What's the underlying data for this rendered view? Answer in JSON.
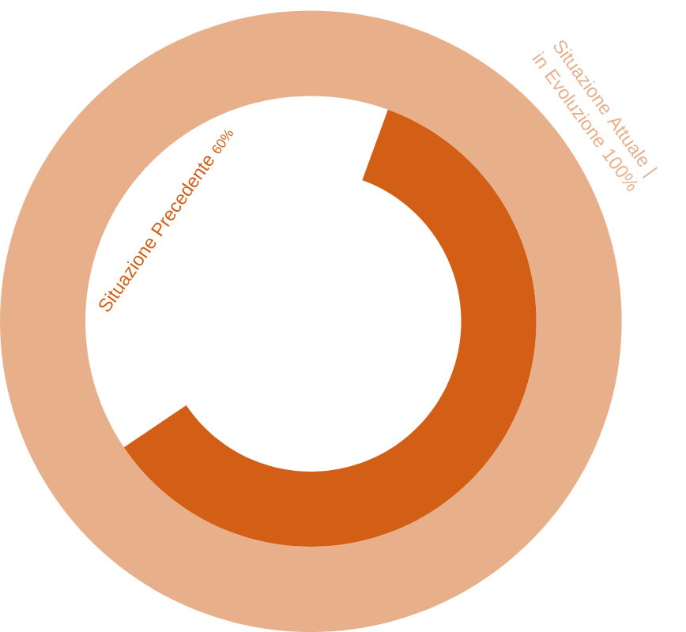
{
  "chart_data": {
    "type": "other",
    "categories": [
      "Situazione Attuale | in Evoluzione",
      "Situazione Precedente"
    ],
    "values": [
      100,
      60
    ],
    "value_labels": [
      "100%",
      "60%"
    ],
    "colors": [
      "#e8b08a",
      "#d35f17"
    ]
  }
}
